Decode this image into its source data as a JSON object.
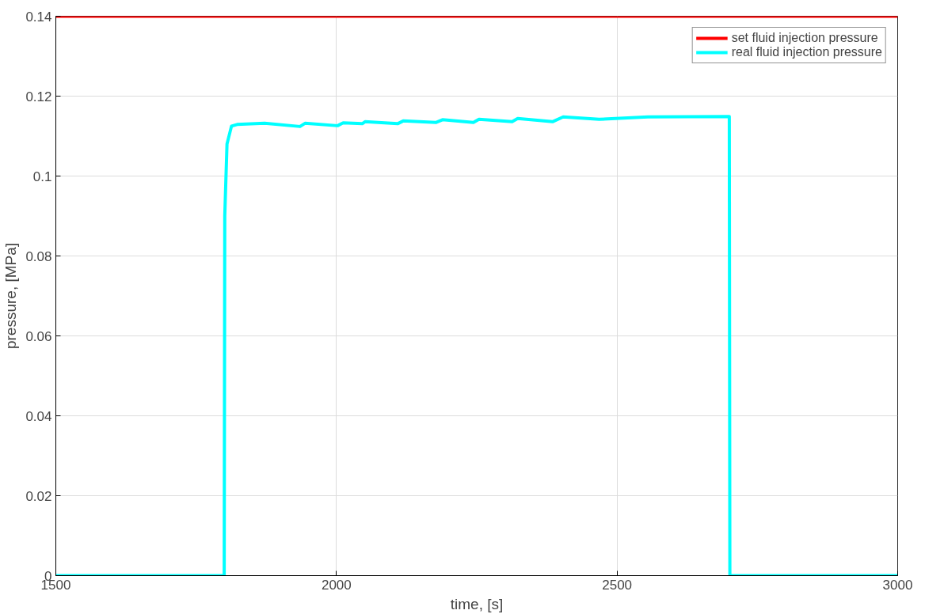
{
  "chart_data": {
    "type": "line",
    "xlabel": "time, [s]",
    "ylabel": "pressure, [MPa]",
    "xlim": [
      1500,
      3000
    ],
    "ylim": [
      0,
      0.14
    ],
    "xticks": [
      1500,
      2000,
      2500,
      3000
    ],
    "yticks": [
      0,
      0.02,
      0.04,
      0.06,
      0.08,
      0.1,
      0.12,
      0.14
    ],
    "grid": true,
    "legend": "top right",
    "line_style": "solid",
    "marker": "none",
    "series": [
      {
        "name": "set fluid injection pressure",
        "color": "#ff0000",
        "x": [
          1500,
          3000
        ],
        "values": [
          0.14,
          0.14
        ]
      },
      {
        "name": "real fluid injection pressure",
        "color": "#00ffff",
        "x": [
          1500,
          1800,
          1801,
          1805,
          1813,
          1823,
          1872,
          1935,
          1944,
          2002,
          2012,
          2046,
          2051,
          2109,
          2119,
          2177,
          2189,
          2244,
          2254,
          2313,
          2323,
          2385,
          2404,
          2468,
          2555,
          2700,
          2701,
          3000
        ],
        "values": [
          0,
          0,
          0.09,
          0.108,
          0.1125,
          0.1129,
          0.1132,
          0.1124,
          0.1132,
          0.1126,
          0.1133,
          0.1131,
          0.1136,
          0.1131,
          0.1138,
          0.1134,
          0.1141,
          0.1134,
          0.1142,
          0.1136,
          0.1144,
          0.1136,
          0.1148,
          0.1142,
          0.1148,
          0.1149,
          0,
          0
        ]
      }
    ]
  }
}
